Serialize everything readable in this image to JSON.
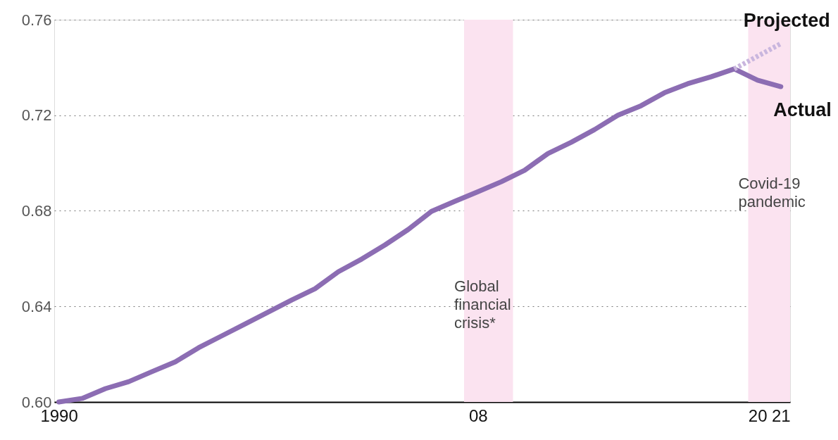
{
  "chart_data": {
    "type": "line",
    "x": [
      1990,
      1991,
      1992,
      1993,
      1994,
      1995,
      1996,
      1997,
      1998,
      1999,
      2000,
      2001,
      2002,
      2003,
      2004,
      2005,
      2006,
      2007,
      2008,
      2009,
      2010,
      2011,
      2012,
      2013,
      2014,
      2015,
      2016,
      2017,
      2018,
      2019,
      2020,
      2021
    ],
    "series": [
      {
        "name": "Actual",
        "color": "#8c6db3",
        "line_style": "solid",
        "values": [
          0.6,
          0.6015,
          0.6056,
          0.6085,
          0.6127,
          0.6168,
          0.6227,
          0.6277,
          0.6327,
          0.6377,
          0.6427,
          0.6474,
          0.6545,
          0.6598,
          0.6657,
          0.6722,
          0.6798,
          0.684,
          0.688,
          0.6922,
          0.697,
          0.704,
          0.7087,
          0.714,
          0.72,
          0.724,
          0.7294,
          0.7332,
          0.7361,
          0.7394,
          0.7347,
          0.732
        ]
      },
      {
        "name": "Projected",
        "color": "#c9b6de",
        "line_style": "dashed",
        "x": [
          2019,
          2021
        ],
        "values": [
          0.7394,
          0.75
        ]
      }
    ],
    "xlim": [
      1989.8,
      2021.4
    ],
    "xticks": [
      {
        "value": 1990,
        "label": "1990"
      },
      {
        "value": 2008,
        "label": "08"
      },
      {
        "value": 2020,
        "label": "20"
      },
      {
        "value": 2021,
        "label": "21"
      }
    ],
    "ylim": [
      0.6,
      0.76
    ],
    "yticks": [
      {
        "value": 0.6,
        "label": "0.60"
      },
      {
        "value": 0.64,
        "label": "0.64"
      },
      {
        "value": 0.68,
        "label": "0.68"
      },
      {
        "value": 0.72,
        "label": "0.72"
      },
      {
        "value": 0.76,
        "label": "0.76"
      }
    ],
    "grid": "y",
    "legend": false,
    "marker": "none",
    "bands": [
      {
        "axis": "x",
        "from": 2007.4,
        "to": 2009.5,
        "label": "Global financial crisis*",
        "color": "#fbe3f0"
      },
      {
        "axis": "x",
        "from": 2019.6,
        "to": 2021.4,
        "label": "Covid-19 pandemic",
        "color": "#fbe3f0"
      }
    ]
  }
}
